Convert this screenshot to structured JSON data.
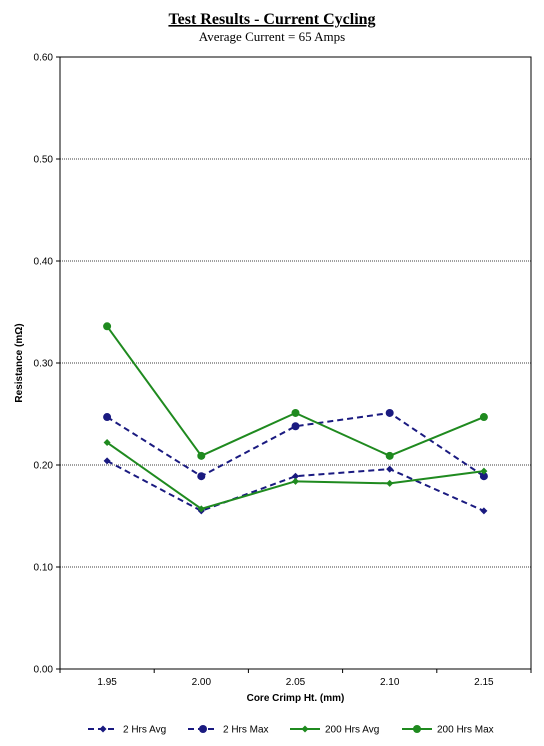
{
  "chart_data": {
    "type": "line",
    "title": "Test Results - Current Cycling",
    "subtitle": "Average Current =  65 Amps",
    "xlabel": "Core Crimp Ht. (mm)",
    "ylabel": "Resistance (mΩ)",
    "categories": [
      "1.95",
      "2.00",
      "2.05",
      "2.10",
      "2.15"
    ],
    "ylim": [
      0,
      0.6
    ],
    "yticks": [
      "0.00",
      "0.10",
      "0.20",
      "0.30",
      "0.40",
      "0.50",
      "0.60"
    ],
    "grid": true,
    "legend_position": "bottom",
    "series": [
      {
        "name": "2 Hrs Avg",
        "values": [
          0.204,
          0.155,
          0.189,
          0.196,
          0.155
        ],
        "color": "#1a1a80",
        "dash": true,
        "marker": "diamond"
      },
      {
        "name": "2 Hrs Max",
        "values": [
          0.247,
          0.189,
          0.238,
          0.251,
          0.189
        ],
        "color": "#1a1a80",
        "dash": true,
        "marker": "circle"
      },
      {
        "name": "200 Hrs Avg",
        "values": [
          0.222,
          0.157,
          0.184,
          0.182,
          0.194
        ],
        "color": "#1f8a1f",
        "dash": false,
        "marker": "diamond"
      },
      {
        "name": "200 Hrs Max",
        "values": [
          0.336,
          0.209,
          0.251,
          0.209,
          0.247
        ],
        "color": "#1f8a1f",
        "dash": false,
        "marker": "circle"
      }
    ]
  }
}
